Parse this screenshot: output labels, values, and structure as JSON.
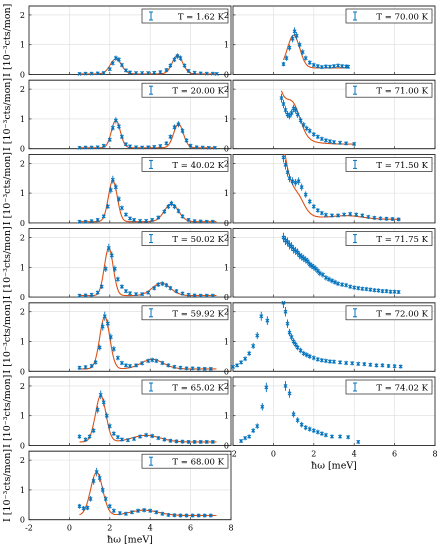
{
  "colors": {
    "data": "#0072BD",
    "fit": "#D95319",
    "grid": "#dcdcdc",
    "axis": "#262626"
  },
  "ylabel": "I [10⁻³cts/mon]",
  "xlabel": "ħω [meV]",
  "chart_data": [
    {
      "type": "scatter",
      "legend": "T = 1.62 K",
      "column": "left",
      "row": 0,
      "xlim": [
        -2,
        8
      ],
      "ylim": [
        0,
        2.3
      ],
      "xticks": [
        -2,
        0,
        2,
        4,
        6,
        8
      ],
      "yticks": [
        0,
        1,
        2
      ],
      "show_xticklabels": false,
      "fit": {
        "bg": 0.02,
        "peaks": [
          [
            2.3,
            0.5,
            0.28
          ],
          [
            5.35,
            0.62,
            0.26
          ]
        ],
        "range": [
          0.5,
          7.3
        ]
      },
      "x": [
        0.5,
        0.8,
        1.1,
        1.4,
        1.7,
        2.0,
        2.15,
        2.3,
        2.45,
        2.6,
        2.8,
        3.0,
        3.3,
        3.6,
        3.9,
        4.2,
        4.5,
        4.8,
        5.0,
        5.2,
        5.35,
        5.5,
        5.7,
        5.9,
        6.2,
        6.5,
        6.8,
        7.1,
        7.3
      ],
      "y": [
        0.02,
        0.03,
        0.03,
        0.04,
        0.05,
        0.18,
        0.38,
        0.55,
        0.5,
        0.32,
        0.14,
        0.07,
        0.05,
        0.05,
        0.05,
        0.06,
        0.08,
        0.15,
        0.3,
        0.5,
        0.62,
        0.55,
        0.3,
        0.12,
        0.06,
        0.04,
        0.03,
        0.03,
        0.02
      ]
    },
    {
      "type": "scatter",
      "legend": "T = 20.00 K",
      "column": "left",
      "row": 1,
      "xlim": [
        -2,
        8
      ],
      "ylim": [
        0,
        2.3
      ],
      "xticks": [
        -2,
        0,
        2,
        4,
        6,
        8
      ],
      "yticks": [
        0,
        1,
        2
      ],
      "show_xticklabels": false,
      "fit": {
        "bg": 0.03,
        "peaks": [
          [
            2.3,
            0.92,
            0.22
          ],
          [
            5.4,
            0.8,
            0.24
          ]
        ],
        "range": [
          0.5,
          7.3
        ]
      },
      "x": [
        0.5,
        0.8,
        1.1,
        1.4,
        1.7,
        2.0,
        2.15,
        2.3,
        2.45,
        2.6,
        2.8,
        3.0,
        3.3,
        3.6,
        3.9,
        4.2,
        4.5,
        4.8,
        5.0,
        5.2,
        5.4,
        5.6,
        5.8,
        6.0,
        6.3,
        6.6,
        6.9,
        7.2
      ],
      "y": [
        0.03,
        0.04,
        0.04,
        0.05,
        0.1,
        0.3,
        0.7,
        0.95,
        0.75,
        0.4,
        0.15,
        0.08,
        0.05,
        0.04,
        0.05,
        0.06,
        0.09,
        0.18,
        0.4,
        0.72,
        0.82,
        0.6,
        0.28,
        0.1,
        0.05,
        0.04,
        0.03,
        0.03
      ]
    },
    {
      "type": "scatter",
      "legend": "T = 40.02 K",
      "column": "left",
      "row": 2,
      "xlim": [
        -2,
        8
      ],
      "ylim": [
        0,
        2.3
      ],
      "xticks": [
        -2,
        0,
        2,
        4,
        6,
        8
      ],
      "yticks": [
        0,
        1,
        2
      ],
      "show_xticklabels": false,
      "fit": {
        "bg": 0.04,
        "peaks": [
          [
            2.15,
            1.38,
            0.22
          ],
          [
            5.05,
            0.6,
            0.35
          ]
        ],
        "range": [
          0.5,
          7.3
        ]
      },
      "x": [
        0.5,
        0.8,
        1.1,
        1.4,
        1.7,
        1.9,
        2.05,
        2.15,
        2.3,
        2.45,
        2.6,
        2.8,
        3.0,
        3.2,
        3.5,
        3.8,
        4.1,
        4.4,
        4.7,
        4.9,
        5.05,
        5.2,
        5.4,
        5.6,
        5.9,
        6.2,
        6.5,
        6.8,
        7.1
      ],
      "y": [
        0.04,
        0.04,
        0.06,
        0.1,
        0.22,
        0.55,
        1.1,
        1.45,
        1.2,
        0.8,
        0.5,
        0.28,
        0.15,
        0.1,
        0.07,
        0.07,
        0.1,
        0.18,
        0.38,
        0.55,
        0.65,
        0.55,
        0.4,
        0.22,
        0.1,
        0.06,
        0.05,
        0.04,
        0.04
      ]
    },
    {
      "type": "scatter",
      "legend": "T = 50.02 K",
      "column": "left",
      "row": 3,
      "xlim": [
        -2,
        8
      ],
      "ylim": [
        0,
        2.3
      ],
      "xticks": [
        -2,
        0,
        2,
        4,
        6,
        8
      ],
      "yticks": [
        0,
        1,
        2
      ],
      "show_xticklabels": false,
      "fit": {
        "bg": 0.05,
        "peaks": [
          [
            1.95,
            1.6,
            0.22
          ],
          [
            4.55,
            0.42,
            0.45
          ]
        ],
        "range": [
          0.5,
          7.3
        ]
      },
      "x": [
        0.5,
        0.8,
        1.1,
        1.4,
        1.6,
        1.8,
        1.95,
        2.1,
        2.25,
        2.4,
        2.6,
        2.8,
        3.0,
        3.3,
        3.6,
        3.9,
        4.2,
        4.4,
        4.6,
        4.8,
        5.0,
        5.3,
        5.6,
        5.9,
        6.2,
        6.5,
        6.8,
        7.1
      ],
      "y": [
        0.05,
        0.06,
        0.08,
        0.15,
        0.35,
        0.95,
        1.65,
        1.4,
        0.95,
        0.6,
        0.35,
        0.2,
        0.13,
        0.1,
        0.1,
        0.15,
        0.3,
        0.42,
        0.45,
        0.4,
        0.3,
        0.2,
        0.12,
        0.08,
        0.06,
        0.05,
        0.05,
        0.05
      ]
    },
    {
      "type": "scatter",
      "legend": "T = 59.92 K",
      "column": "left",
      "row": 4,
      "xlim": [
        -2,
        8
      ],
      "ylim": [
        0,
        2.3
      ],
      "xticks": [
        -2,
        0,
        2,
        4,
        6,
        8
      ],
      "yticks": [
        0,
        1,
        2
      ],
      "show_xticklabels": false,
      "fit": {
        "bg": 0.08,
        "peaks": [
          [
            1.75,
            1.75,
            0.25
          ],
          [
            4.1,
            0.32,
            0.55
          ]
        ],
        "range": [
          0.5,
          7.3
        ]
      },
      "x": [
        0.5,
        0.8,
        1.1,
        1.3,
        1.5,
        1.65,
        1.75,
        1.9,
        2.05,
        2.2,
        2.4,
        2.6,
        2.8,
        3.0,
        3.3,
        3.6,
        3.9,
        4.1,
        4.3,
        4.6,
        4.9,
        5.2,
        5.5,
        5.8,
        6.1,
        6.4,
        6.7,
        7.0
      ],
      "y": [
        0.12,
        0.14,
        0.18,
        0.3,
        0.8,
        1.5,
        1.85,
        1.6,
        1.15,
        0.75,
        0.45,
        0.28,
        0.2,
        0.18,
        0.2,
        0.27,
        0.35,
        0.38,
        0.35,
        0.28,
        0.2,
        0.15,
        0.12,
        0.1,
        0.1,
        0.09,
        0.08,
        0.08
      ]
    },
    {
      "type": "scatter",
      "legend": "T = 65.02 K",
      "column": "left",
      "row": 5,
      "xlim": [
        -2,
        8
      ],
      "ylim": [
        0,
        2.3
      ],
      "xticks": [
        -2,
        0,
        2,
        4,
        6,
        8
      ],
      "yticks": [
        0,
        1,
        2
      ],
      "show_xticklabels": false,
      "fit": {
        "bg": 0.12,
        "peaks": [
          [
            1.55,
            1.55,
            0.26
          ],
          [
            3.8,
            0.22,
            0.7
          ]
        ],
        "range": [
          0.5,
          7.3
        ]
      },
      "x": [
        0.5,
        0.8,
        1.0,
        1.2,
        1.4,
        1.55,
        1.7,
        1.85,
        2.0,
        2.2,
        2.4,
        2.6,
        2.9,
        3.2,
        3.5,
        3.8,
        4.1,
        4.4,
        4.7,
        5.0,
        5.3,
        5.6,
        5.9,
        6.2,
        6.5,
        6.8,
        7.1
      ],
      "y": [
        0.3,
        0.2,
        0.3,
        0.5,
        1.2,
        1.7,
        1.45,
        1.0,
        0.65,
        0.4,
        0.28,
        0.2,
        0.18,
        0.22,
        0.3,
        0.35,
        0.32,
        0.25,
        0.2,
        0.16,
        0.14,
        0.13,
        0.12,
        0.12,
        0.12,
        0.12,
        0.12
      ]
    },
    {
      "type": "scatter",
      "legend": "T = 68.00 K",
      "column": "left",
      "row": 6,
      "xlim": [
        -2,
        8
      ],
      "ylim": [
        0,
        2.3
      ],
      "xticks": [
        -2,
        0,
        2,
        4,
        6,
        8
      ],
      "yticks": [
        0,
        1,
        2
      ],
      "show_xticklabels": true,
      "fit": {
        "bg": 0.14,
        "peaks": [
          [
            1.35,
            1.45,
            0.3
          ],
          [
            3.7,
            0.18,
            0.7
          ]
        ],
        "range": [
          0.5,
          7.3
        ]
      },
      "x": [
        0.5,
        0.7,
        0.9,
        1.05,
        1.2,
        1.35,
        1.5,
        1.65,
        1.8,
        2.0,
        2.2,
        2.5,
        2.8,
        3.1,
        3.4,
        3.7,
        4.0,
        4.3,
        4.6,
        4.9,
        5.2,
        5.5,
        5.8,
        6.1,
        6.4,
        6.7,
        7.0
      ],
      "y": [
        0.45,
        0.38,
        0.4,
        0.7,
        1.3,
        1.6,
        1.4,
        1.0,
        0.7,
        0.45,
        0.3,
        0.22,
        0.2,
        0.25,
        0.3,
        0.32,
        0.3,
        0.25,
        0.2,
        0.16,
        0.15,
        0.14,
        0.14,
        0.14,
        0.14,
        0.14,
        0.14
      ]
    },
    {
      "type": "scatter",
      "legend": "T = 70.00 K",
      "column": "right",
      "row": 0,
      "xlim": [
        -2,
        8
      ],
      "ylim": [
        0,
        2.3
      ],
      "xticks": [
        -2,
        0,
        2,
        4,
        6,
        8
      ],
      "yticks": [
        0,
        1,
        2
      ],
      "show_xticklabels": false,
      "fit": {
        "bg": 0.22,
        "peaks": [
          [
            1.0,
            1.1,
            0.3
          ]
        ],
        "range": [
          0.5,
          3.7
        ]
      },
      "x": [
        0.5,
        0.65,
        0.8,
        0.95,
        1.05,
        1.15,
        1.3,
        1.45,
        1.6,
        1.8,
        2.0,
        2.2,
        2.4,
        2.6,
        2.8,
        3.0,
        3.2,
        3.4,
        3.6,
        3.7
      ],
      "y": [
        0.35,
        0.55,
        0.9,
        1.2,
        1.45,
        1.3,
        1.0,
        0.75,
        0.55,
        0.4,
        0.32,
        0.28,
        0.25,
        0.27,
        0.26,
        0.28,
        0.3,
        0.28,
        0.27,
        0.26
      ]
    },
    {
      "type": "scatter",
      "legend": "T = 71.00 K",
      "column": "right",
      "row": 1,
      "xlim": [
        -2,
        8
      ],
      "ylim": [
        0,
        2.3
      ],
      "xticks": [
        -2,
        0,
        2,
        4,
        6,
        8
      ],
      "yticks": [
        0,
        1,
        2
      ],
      "show_xticklabels": false,
      "fit": {
        "bg": 0.15,
        "peaks": [
          [
            1.0,
            0.85,
            0.35
          ]
        ],
        "decay": [
          1.6,
          0.55
        ],
        "range": [
          0.4,
          4.0
        ]
      },
      "x": [
        0.4,
        0.5,
        0.6,
        0.7,
        0.8,
        0.9,
        1.0,
        1.1,
        1.2,
        1.35,
        1.5,
        1.65,
        1.8,
        2.0,
        2.2,
        2.4,
        2.6,
        2.8,
        3.0,
        3.3,
        3.6,
        4.0
      ],
      "y": [
        1.7,
        1.5,
        1.3,
        1.15,
        1.1,
        1.2,
        1.35,
        1.3,
        1.15,
        0.95,
        0.8,
        0.68,
        0.6,
        0.48,
        0.4,
        0.33,
        0.28,
        0.25,
        0.22,
        0.2,
        0.18,
        0.16
      ]
    },
    {
      "type": "scatter",
      "legend": "T = 71.50 K",
      "column": "right",
      "row": 2,
      "xlim": [
        -2,
        8
      ],
      "ylim": [
        0,
        2.3
      ],
      "xticks": [
        -2,
        0,
        2,
        4,
        6,
        8
      ],
      "yticks": [
        0,
        1,
        2
      ],
      "show_xticklabels": false,
      "fit": {
        "bg": 0.12,
        "peaks": [
          [
            1.25,
            0.35,
            0.3
          ],
          [
            3.6,
            0.12,
            0.8
          ]
        ],
        "decay": [
          2.6,
          0.45
        ],
        "range": [
          0.5,
          6.3
        ]
      },
      "x": [
        0.5,
        0.6,
        0.7,
        0.8,
        0.95,
        1.1,
        1.25,
        1.4,
        1.6,
        1.8,
        2.0,
        2.2,
        2.4,
        2.6,
        2.9,
        3.2,
        3.5,
        3.8,
        4.1,
        4.4,
        4.7,
        5.0,
        5.3,
        5.6,
        5.9,
        6.2
      ],
      "y": [
        2.2,
        1.95,
        1.7,
        1.5,
        1.4,
        1.35,
        1.4,
        1.2,
        0.95,
        0.72,
        0.55,
        0.42,
        0.33,
        0.27,
        0.25,
        0.25,
        0.28,
        0.3,
        0.28,
        0.25,
        0.2,
        0.17,
        0.15,
        0.14,
        0.13,
        0.12
      ]
    },
    {
      "type": "scatter",
      "legend": "T = 71.75 K",
      "column": "right",
      "row": 3,
      "xlim": [
        -2,
        8
      ],
      "ylim": [
        0,
        2.3
      ],
      "xticks": [
        -2,
        0,
        2,
        4,
        6,
        8
      ],
      "yticks": [
        0,
        1,
        2
      ],
      "show_xticklabels": false,
      "x": [
        0.5,
        0.6,
        0.7,
        0.8,
        0.9,
        1.0,
        1.1,
        1.2,
        1.3,
        1.4,
        1.5,
        1.6,
        1.7,
        1.8,
        1.9,
        2.0,
        2.1,
        2.2,
        2.3,
        2.45,
        2.6,
        2.75,
        2.9,
        3.05,
        3.2,
        3.4,
        3.6,
        3.8,
        4.0,
        4.2,
        4.4,
        4.6,
        4.8,
        5.0,
        5.2,
        5.4,
        5.6,
        5.8,
        6.0,
        6.2
      ],
      "y": [
        2.0,
        1.9,
        1.85,
        1.75,
        1.7,
        1.6,
        1.55,
        1.5,
        1.4,
        1.35,
        1.3,
        1.25,
        1.2,
        1.1,
        1.05,
        1.0,
        0.95,
        0.88,
        0.8,
        0.75,
        0.65,
        0.6,
        0.55,
        0.5,
        0.45,
        0.42,
        0.4,
        0.35,
        0.32,
        0.3,
        0.28,
        0.27,
        0.25,
        0.23,
        0.22,
        0.2,
        0.2,
        0.18,
        0.18,
        0.17
      ]
    },
    {
      "type": "scatter",
      "legend": "T = 72.00 K",
      "column": "right",
      "row": 4,
      "xlim": [
        -2,
        8
      ],
      "ylim": [
        0,
        2.3
      ],
      "xticks": [
        -2,
        0,
        2,
        4,
        6,
        8
      ],
      "yticks": [
        0,
        1,
        2
      ],
      "show_xticklabels": false,
      "x": [
        -2.0,
        -1.8,
        -1.6,
        -1.4,
        -1.2,
        -1.0,
        -0.8,
        -0.6,
        -0.3,
        0.5,
        0.6,
        0.7,
        0.8,
        0.9,
        1.0,
        1.1,
        1.2,
        1.35,
        1.5,
        1.65,
        1.8,
        2.0,
        2.2,
        2.4,
        2.6,
        2.8,
        3.0,
        3.3,
        3.6,
        3.9,
        4.2,
        4.5,
        4.8,
        5.1,
        5.4,
        5.7,
        6.0,
        6.3
      ],
      "y": [
        0.15,
        0.2,
        0.3,
        0.42,
        0.6,
        0.85,
        1.2,
        1.85,
        1.7,
        2.3,
        2.0,
        1.6,
        1.3,
        1.15,
        1.0,
        0.9,
        0.8,
        0.7,
        0.6,
        0.55,
        0.5,
        0.45,
        0.4,
        0.37,
        0.35,
        0.33,
        0.32,
        0.3,
        0.28,
        0.27,
        0.25,
        0.24,
        0.22,
        0.2,
        0.2,
        0.18,
        0.17,
        0.16
      ]
    },
    {
      "type": "scatter",
      "legend": "T = 74.02 K",
      "column": "right",
      "row": 5,
      "xlim": [
        -2,
        8
      ],
      "ylim": [
        0,
        2.3
      ],
      "xticks": [
        -2,
        0,
        2,
        4,
        6,
        8
      ],
      "yticks": [
        0,
        1,
        2
      ],
      "show_xticklabels": true,
      "x": [
        -1.6,
        -1.4,
        -1.2,
        -1.0,
        -0.8,
        -0.55,
        -0.35,
        0.6,
        0.8,
        1.0,
        1.2,
        1.4,
        1.6,
        1.8,
        2.0,
        2.2,
        2.4,
        2.6,
        2.9,
        3.3,
        3.7,
        4.2
      ],
      "y": [
        0.15,
        0.25,
        0.3,
        0.5,
        0.65,
        1.3,
        1.95,
        2.0,
        1.75,
        1.05,
        0.85,
        0.7,
        0.6,
        0.55,
        0.5,
        0.45,
        0.4,
        0.35,
        0.3,
        0.3,
        0.28,
        0.12
      ]
    }
  ]
}
